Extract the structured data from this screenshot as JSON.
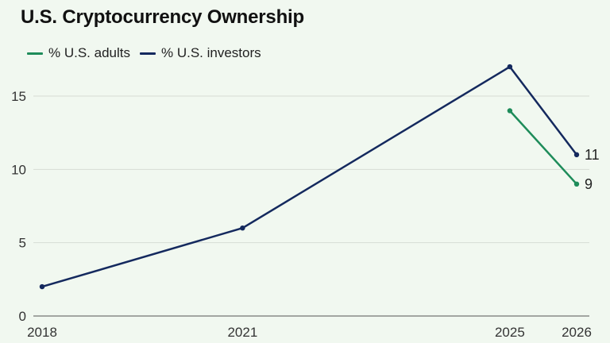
{
  "chart_data": {
    "type": "line",
    "title": "U.S. Cryptocurrency Ownership",
    "xlabel": "",
    "ylabel": "",
    "x_ticks": [
      2018,
      2021,
      2025,
      2026
    ],
    "y_ticks": [
      0,
      5,
      10,
      15
    ],
    "xlim": [
      2018,
      2026
    ],
    "ylim": [
      0,
      17
    ],
    "grid": "horizontal",
    "legend_position": "top-left",
    "series": [
      {
        "name": "% U.S. adults",
        "color": "#1e8c5a",
        "points": [
          {
            "x": 2025,
            "y": 14
          },
          {
            "x": 2026,
            "y": 9
          }
        ],
        "end_label": "9"
      },
      {
        "name": "% U.S. investors",
        "color": "#14295e",
        "points": [
          {
            "x": 2018,
            "y": 2
          },
          {
            "x": 2021,
            "y": 6
          },
          {
            "x": 2025,
            "y": 17
          },
          {
            "x": 2026,
            "y": 11
          }
        ],
        "end_label": "11"
      }
    ]
  }
}
